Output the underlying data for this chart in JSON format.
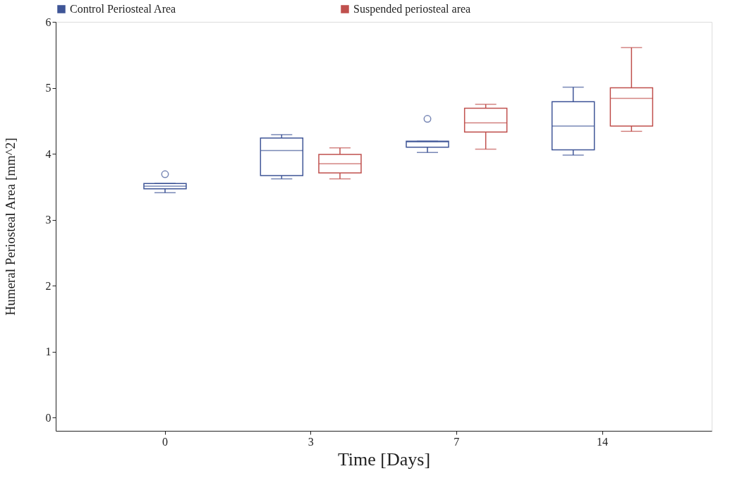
{
  "chart_data": {
    "type": "box",
    "xlabel": "Time [Days]",
    "ylabel": "Humeral Periosteal Area [mm^2]",
    "categories": [
      "0",
      "3",
      "7",
      "14"
    ],
    "ylim": [
      -0.2,
      6
    ],
    "yticks": [
      0,
      1,
      2,
      3,
      4,
      5,
      6
    ],
    "grid": false,
    "legend": "top left",
    "series": [
      {
        "name": "Control Periosteal Area",
        "color": "#3f5597",
        "boxes": [
          {
            "low": 3.41,
            "q1": 3.47,
            "median": 3.51,
            "q3": 3.55,
            "high": 3.55,
            "outliers": [
              3.69
            ]
          },
          {
            "low": 3.62,
            "q1": 3.67,
            "median": 4.05,
            "q3": 4.24,
            "high": 4.29
          },
          {
            "low": 4.02,
            "q1": 4.1,
            "median": 4.18,
            "q3": 4.19,
            "high": 4.19,
            "outliers": [
              4.53
            ]
          },
          {
            "low": 3.98,
            "q1": 4.06,
            "median": 4.42,
            "q3": 4.79,
            "high": 5.01
          }
        ]
      },
      {
        "name": "Suspended periosteal area",
        "color": "#c0504d",
        "boxes": [
          null,
          {
            "low": 3.62,
            "q1": 3.71,
            "median": 3.85,
            "q3": 3.99,
            "high": 4.09
          },
          {
            "low": 4.07,
            "q1": 4.33,
            "median": 4.47,
            "q3": 4.69,
            "high": 4.75
          },
          {
            "low": 4.34,
            "q1": 4.42,
            "median": 4.84,
            "q3": 5.0,
            "high": 5.61
          }
        ]
      }
    ]
  }
}
